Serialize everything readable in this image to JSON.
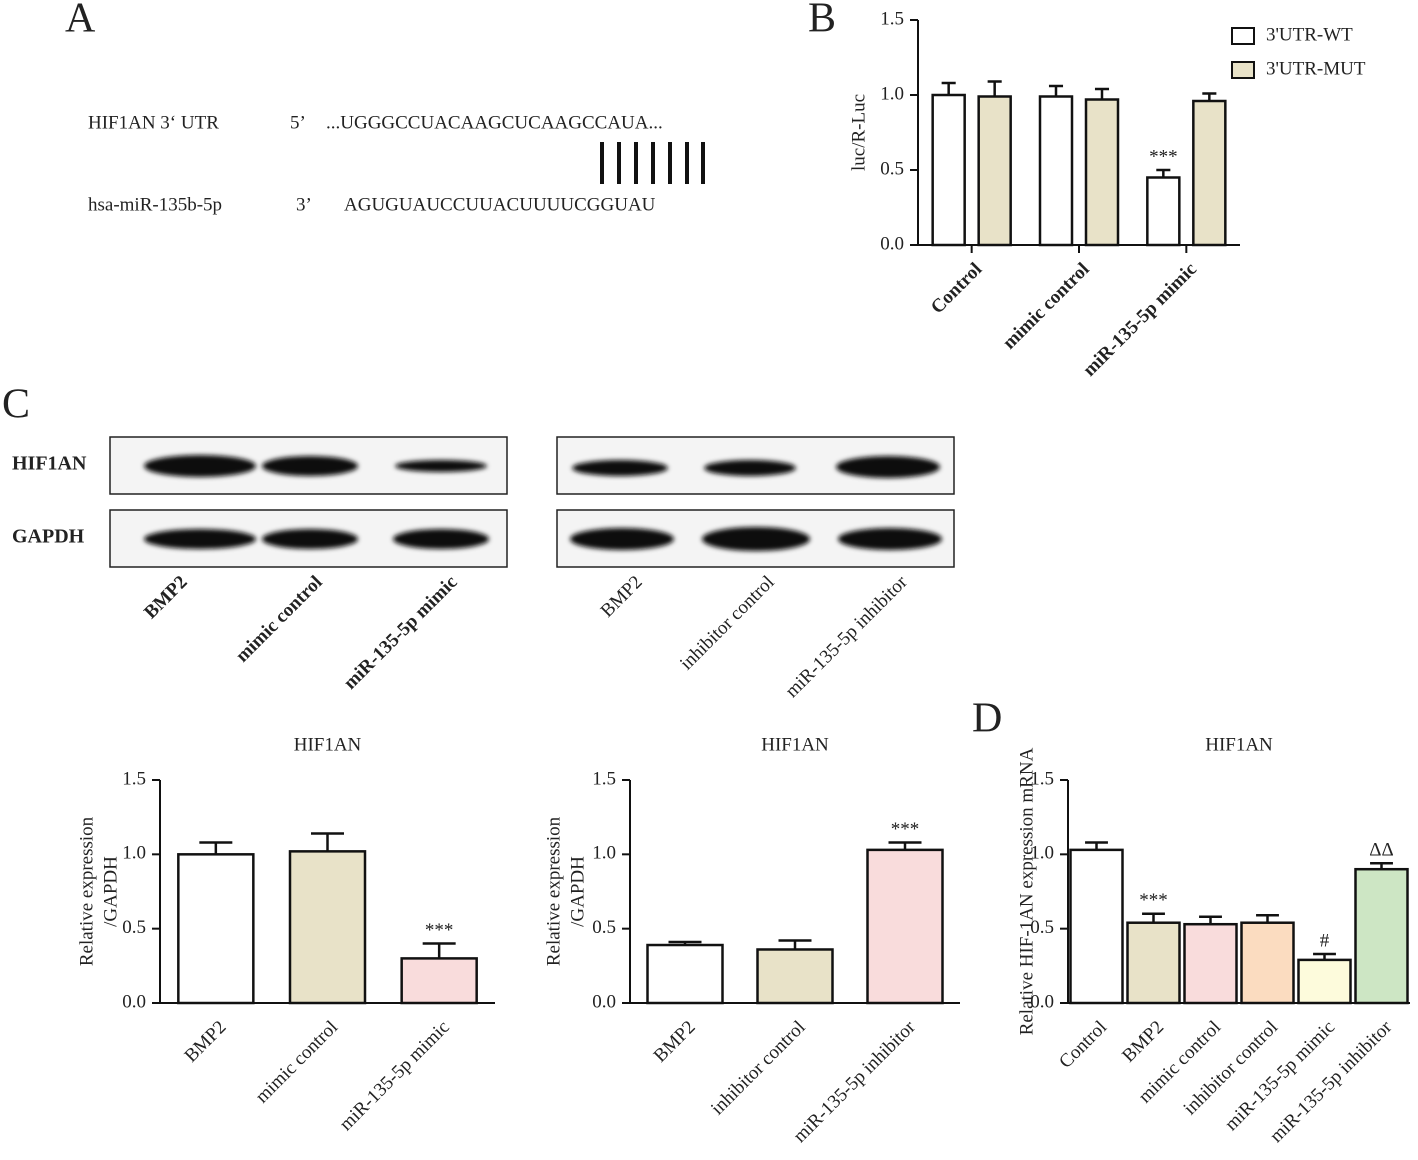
{
  "panel_labels": [
    "A",
    "B",
    "C",
    "D"
  ],
  "sequence": {
    "target_name": "HIF1AN  3‘ UTR",
    "target_end": "5’",
    "target_seq": "...UGGGCCUACAAGCUCAAGCCAUA...",
    "mirna_name": "hsa-miR-135b-5p",
    "mirna_end": "3’",
    "mirna_seq": "AGUGUAUCCUUACUUUUCGGUAU"
  },
  "blots": {
    "rows": [
      "HIF1AN",
      "GAPDH"
    ],
    "lanes_left": [
      "BMP2",
      "mimic control",
      "miR-135-5p mimic"
    ],
    "lanes_right": [
      "BMP2",
      "inhibitor control",
      "miR-135-5p inhibitor"
    ]
  },
  "chart_data": [
    {
      "type": "bar",
      "ylabel": "luc/R-Luc",
      "categories": [
        "Control",
        "mimic control",
        "miR-135-5p mimic"
      ],
      "series": [
        {
          "name": "3'UTR-WT",
          "color": "#ffffff",
          "values": [
            1.0,
            0.99,
            0.45
          ],
          "errors": [
            0.08,
            0.07,
            0.05
          ],
          "annotations": [
            null,
            null,
            "***"
          ]
        },
        {
          "name": "3'UTR-MUT",
          "color": "#e8e2c8",
          "values": [
            0.99,
            0.97,
            0.96
          ],
          "errors": [
            0.1,
            0.07,
            0.05
          ],
          "annotations": [
            null,
            null,
            null
          ]
        }
      ],
      "ylim": [
        0,
        1.5
      ],
      "yticks": [
        {
          "value": 0,
          "label": "0.0"
        },
        0.5,
        {
          "value": 1,
          "label": "1.0"
        },
        1.5
      ]
    },
    {
      "type": "bar",
      "title": "HIF1AN",
      "ylabel": [
        "Relative expression",
        "/GAPDH"
      ],
      "categories": [
        "BMP2",
        "mimic control",
        "miR-135-5p mimic"
      ],
      "values": [
        1.0,
        1.02,
        0.3
      ],
      "errors": [
        0.08,
        0.12,
        0.1
      ],
      "annotations": [
        null,
        null,
        "***"
      ],
      "colors": [
        "#ffffff",
        "#e8e2c8",
        "#f9dcdc"
      ],
      "ylim": [
        0,
        1.5
      ],
      "yticks": [
        {
          "value": 0,
          "label": "0.0"
        },
        0.5,
        {
          "value": 1,
          "label": "1.0"
        },
        1.5
      ]
    },
    {
      "type": "bar",
      "title": "HIF1AN",
      "ylabel": [
        "Relative expression",
        "/GAPDH"
      ],
      "categories": [
        "BMP2",
        "inhibitor control",
        "miR-135-5p inhibitor"
      ],
      "values": [
        0.39,
        0.36,
        1.03
      ],
      "errors": [
        0.02,
        0.06,
        0.05
      ],
      "annotations": [
        null,
        null,
        "***"
      ],
      "colors": [
        "#ffffff",
        "#e8e2c8",
        "#f9dcdc"
      ],
      "ylim": [
        0,
        1.5
      ],
      "yticks": [
        {
          "value": 0,
          "label": "0.0"
        },
        0.5,
        {
          "value": 1,
          "label": "1.0"
        },
        1.5
      ]
    },
    {
      "type": "bar",
      "title": "HIF1AN",
      "ylabel": [
        "Relative HIF-1AN expression mRNA"
      ],
      "categories": [
        "Control",
        "BMP2",
        "mimic control",
        "inhibitor control",
        "miR-135-5p mimic",
        "miR-135-5p inhibitor"
      ],
      "values": [
        1.03,
        0.54,
        0.53,
        0.54,
        0.29,
        0.9
      ],
      "errors": [
        0.05,
        0.06,
        0.05,
        0.05,
        0.04,
        0.04
      ],
      "annotations": [
        null,
        "***",
        null,
        null,
        "#",
        "ΔΔ"
      ],
      "colors": [
        "#ffffff",
        "#e8e2c8",
        "#f9dcdc",
        "#fbdcc0",
        "#fdfbdc",
        "#cde6c4"
      ],
      "ylim": [
        0,
        1.5
      ],
      "yticks": [
        {
          "value": 0,
          "label": "0.0"
        },
        0.5,
        {
          "value": 1,
          "label": "1.0"
        },
        1.5
      ]
    }
  ]
}
